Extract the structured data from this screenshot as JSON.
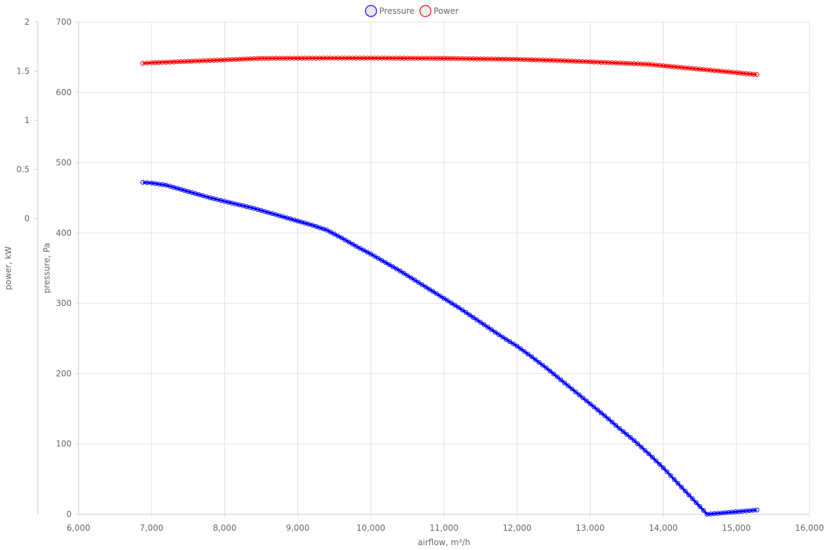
{
  "chart_data": {
    "type": "line",
    "title": "",
    "xlabel": "airflow, m³/h",
    "ylabel_left_outer": "power, kW",
    "ylabel_left_inner": "pressure, Pa",
    "x_ticks": [
      "6,000",
      "7,000",
      "8,000",
      "9,000",
      "10,000",
      "11,000",
      "12,000",
      "13,000",
      "14,000",
      "15,000",
      "16,000"
    ],
    "y_pressure_ticks": [
      "0",
      "100",
      "200",
      "300",
      "400",
      "500",
      "600",
      "700"
    ],
    "y_power_ticks": [
      "0",
      "0.5",
      "1",
      "1.5",
      "2"
    ],
    "xlim": [
      6000,
      16000
    ],
    "ylim_pressure": [
      0,
      700
    ],
    "ylim_power": [
      0,
      2
    ],
    "grid": true,
    "legend_position": "top-center",
    "series": [
      {
        "name": "Pressure",
        "axis": "pressure",
        "color": "#0000ff",
        "points": [
          [
            6880,
            472
          ],
          [
            7000,
            471
          ],
          [
            7200,
            468
          ],
          [
            7400,
            462
          ],
          [
            7600,
            456
          ],
          [
            7800,
            450
          ],
          [
            8000,
            445
          ],
          [
            8200,
            440
          ],
          [
            8400,
            435
          ],
          [
            8600,
            429
          ],
          [
            8800,
            423
          ],
          [
            9000,
            417
          ],
          [
            9200,
            411
          ],
          [
            9400,
            404
          ],
          [
            9600,
            393
          ],
          [
            9800,
            381
          ],
          [
            10000,
            370
          ],
          [
            10200,
            358
          ],
          [
            10400,
            346
          ],
          [
            10600,
            333
          ],
          [
            10800,
            320
          ],
          [
            11000,
            307
          ],
          [
            11200,
            294
          ],
          [
            11400,
            280
          ],
          [
            11600,
            266
          ],
          [
            11800,
            252
          ],
          [
            12000,
            239
          ],
          [
            12200,
            224
          ],
          [
            12400,
            208
          ],
          [
            12600,
            191
          ],
          [
            12800,
            174
          ],
          [
            13000,
            157
          ],
          [
            13200,
            140
          ],
          [
            13400,
            122
          ],
          [
            13600,
            105
          ],
          [
            13800,
            86
          ],
          [
            14000,
            66
          ],
          [
            14200,
            44
          ],
          [
            14400,
            22
          ],
          [
            14600,
            0
          ],
          [
            15280,
            6
          ]
        ]
      },
      {
        "name": "Power",
        "axis": "power",
        "color": "#ff0000",
        "points": [
          [
            6880,
            1.58
          ],
          [
            7000,
            1.585
          ],
          [
            7500,
            1.6
          ],
          [
            8000,
            1.615
          ],
          [
            8500,
            1.63
          ],
          [
            9000,
            1.632
          ],
          [
            9500,
            1.633
          ],
          [
            10000,
            1.633
          ],
          [
            10500,
            1.632
          ],
          [
            11000,
            1.63
          ],
          [
            11500,
            1.625
          ],
          [
            12000,
            1.62
          ],
          [
            12500,
            1.61
          ],
          [
            13000,
            1.595
          ],
          [
            13500,
            1.58
          ],
          [
            13800,
            1.57
          ],
          [
            14000,
            1.555
          ],
          [
            14500,
            1.52
          ],
          [
            15000,
            1.485
          ],
          [
            15280,
            1.465
          ]
        ]
      }
    ]
  }
}
